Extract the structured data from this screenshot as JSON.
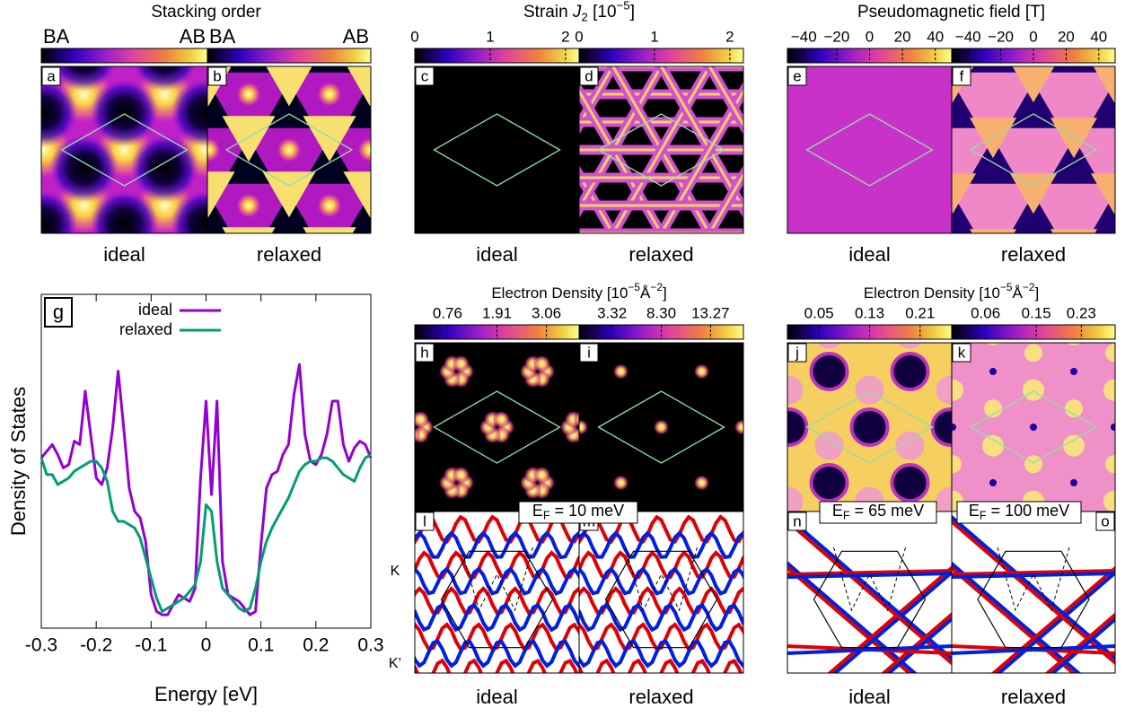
{
  "stacking": {
    "title": "Stacking order",
    "colorbars": [
      {
        "left": "BA",
        "right": "AB"
      },
      {
        "left": "BA",
        "right": "AB"
      }
    ],
    "panels": [
      {
        "letter": "a",
        "caption": "ideal"
      },
      {
        "letter": "b",
        "caption": "relaxed"
      }
    ]
  },
  "strain": {
    "title": {
      "text": "Strain ",
      "symbol": "J",
      "sub": "2",
      "unit": " [10",
      "exp": "−5",
      "close": "]"
    },
    "colorbars": [
      {
        "lim": [
          0,
          2.18
        ],
        "ticks": [
          0,
          1,
          2
        ]
      },
      {
        "lim": [
          0,
          2.18
        ],
        "ticks": [
          0,
          1,
          2
        ]
      }
    ],
    "panels": [
      {
        "letter": "c",
        "caption": "ideal"
      },
      {
        "letter": "d",
        "caption": "relaxed"
      }
    ]
  },
  "pseudo": {
    "title": "Pseudomagnetic field [T]",
    "colorbars": [
      {
        "lim": [
          -50,
          50
        ],
        "ticks": [
          {
            "value": -40,
            "label": "−40"
          },
          {
            "value": -20,
            "label": "−20"
          },
          0,
          20,
          40
        ]
      },
      {
        "lim": [
          -50,
          50
        ],
        "ticks": [
          {
            "value": -40,
            "label": "−40"
          },
          {
            "value": -20,
            "label": "−20"
          },
          0,
          20,
          40
        ]
      }
    ],
    "panels": [
      {
        "letter": "e",
        "caption": "ideal"
      },
      {
        "letter": "f",
        "caption": "relaxed"
      }
    ]
  },
  "density": [
    {
      "title": {
        "text": "Electron Density [10",
        "exp": "−5",
        "unit": "Å",
        "exp2": "−2",
        "close": "]"
      },
      "colorbars": [
        {
          "lim": [
            0,
            3.82
          ],
          "ticks": [
            0.76,
            1.91,
            3.06
          ]
        },
        {
          "lim": [
            0,
            16.59
          ],
          "ticks": [
            3.32,
            {
              "value": 8.3,
              "label": "8.30"
            },
            13.27
          ]
        }
      ],
      "panels": [
        {
          "letter": "h"
        },
        {
          "letter": "i"
        }
      ]
    },
    {
      "title": {
        "text": "Electron Density [10",
        "exp": "−5",
        "unit": "Å",
        "exp2": "−2",
        "close": "]"
      },
      "colorbars": [
        {
          "lim": [
            0,
            0.26
          ],
          "ticks": [
            0.05,
            0.13,
            0.21
          ]
        },
        {
          "lim": [
            0,
            0.29
          ],
          "ticks": [
            0.06,
            0.15,
            0.23
          ]
        }
      ],
      "panels": [
        {
          "letter": "j"
        },
        {
          "letter": "k"
        }
      ]
    }
  ],
  "fermi": {
    "valleys": [
      "K",
      "K’"
    ],
    "panels": [
      {
        "letter": "l",
        "caption": "ideal"
      },
      {
        "letter": "m",
        "caption": "relaxed"
      },
      {
        "letter": "n",
        "caption": "ideal"
      },
      {
        "letter": "o",
        "caption": "relaxed"
      }
    ],
    "energies": [
      {
        "symbol": "E",
        "sub": "F",
        "text": " = 10 meV"
      },
      {
        "symbol": "E",
        "sub": "F",
        "text": " = 65 meV"
      },
      {
        "symbol": "E",
        "sub": "F",
        "text": " = 100 meV"
      }
    ]
  },
  "chart_data": {
    "type": "line",
    "letter": "g",
    "xlabel": "Energy [eV]",
    "ylabel": "Density of States",
    "x": [
      -0.3,
      -0.29,
      -0.28,
      -0.27,
      -0.26,
      -0.25,
      -0.24,
      -0.23,
      -0.22,
      -0.21,
      -0.2,
      -0.19,
      -0.18,
      -0.17,
      -0.16,
      -0.15,
      -0.14,
      -0.13,
      -0.12,
      -0.11,
      -0.1,
      -0.09,
      -0.08,
      -0.07,
      -0.06,
      -0.05,
      -0.04,
      -0.03,
      -0.02,
      -0.01,
      0,
      0.01,
      0.02,
      0.03,
      0.04,
      0.05,
      0.06,
      0.07,
      0.08,
      0.09,
      0.1,
      0.11,
      0.12,
      0.13,
      0.14,
      0.15,
      0.16,
      0.17,
      0.18,
      0.19,
      0.2,
      0.21,
      0.22,
      0.23,
      0.24,
      0.25,
      0.26,
      0.27,
      0.28,
      0.29,
      0.3
    ],
    "series": [
      {
        "name": "ideal",
        "color": "#9400d3",
        "values": [
          5.1,
          5.3,
          5.5,
          5.2,
          4.8,
          4.9,
          5.6,
          5.5,
          7.1,
          5.8,
          4.5,
          4.3,
          4.8,
          6.0,
          7.7,
          6.0,
          4.2,
          3.5,
          3.3,
          2.6,
          1.0,
          0.5,
          0.4,
          0.4,
          0.7,
          1.0,
          0.9,
          0.8,
          1.2,
          4.5,
          6.8,
          4.0,
          6.8,
          2.0,
          1.0,
          0.9,
          0.8,
          0.6,
          0.4,
          0.5,
          2.5,
          4.2,
          4.6,
          4.7,
          5.2,
          5.5,
          7.0,
          7.9,
          5.8,
          5.0,
          4.9,
          5.2,
          5.8,
          6.8,
          6.8,
          5.5,
          5.0,
          5.4,
          5.6,
          5.5,
          5.1
        ]
      },
      {
        "name": "relaxed",
        "color": "#009e73",
        "values": [
          5.1,
          4.6,
          4.6,
          4.3,
          4.4,
          4.5,
          4.7,
          4.8,
          4.9,
          5.0,
          5.0,
          4.8,
          4.4,
          3.5,
          3.2,
          3.2,
          3.1,
          3.0,
          2.7,
          2.1,
          1.5,
          0.9,
          0.5,
          0.6,
          0.7,
          0.8,
          0.9,
          1.1,
          1.3,
          2.0,
          3.7,
          3.5,
          2.0,
          1.2,
          1.0,
          0.8,
          0.6,
          0.5,
          0.6,
          1.2,
          2.0,
          2.6,
          3.0,
          3.3,
          3.6,
          3.9,
          4.3,
          4.7,
          4.9,
          5.0,
          5.0,
          5.1,
          5.1,
          5.0,
          4.8,
          4.6,
          4.5,
          4.4,
          4.8,
          5.1,
          5.2
        ]
      }
    ],
    "xlim": [
      -0.3,
      0.3
    ],
    "xticks": [
      -0.3,
      -0.2,
      -0.1,
      0,
      0.1,
      0.2,
      0.3
    ],
    "ylim": [
      0,
      10
    ]
  }
}
